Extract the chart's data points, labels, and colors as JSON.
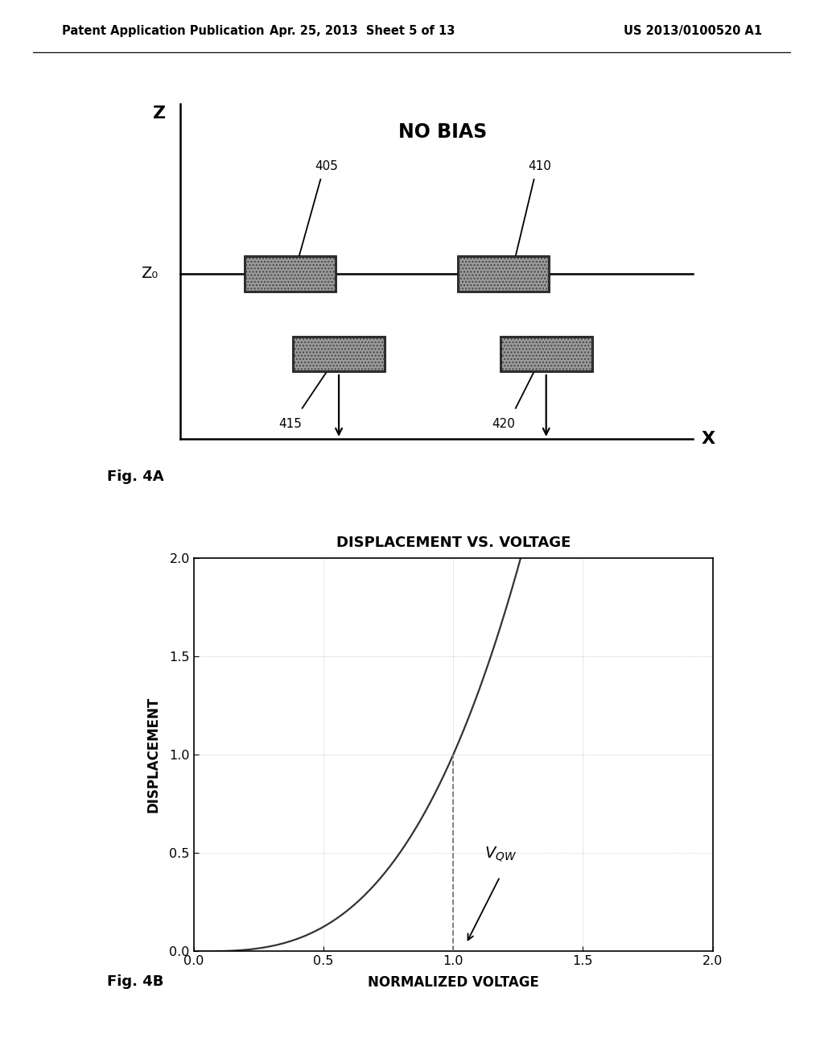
{
  "header_left": "Patent Application Publication",
  "header_mid": "Apr. 25, 2013  Sheet 5 of 13",
  "header_right": "US 2013/0100520 A1",
  "fig4a_label": "Fig. 4A",
  "fig4b_label": "Fig. 4B",
  "no_bias_text": "NO BIAS",
  "z_label": "Z",
  "z0_label": "Z₀",
  "x_label": "X",
  "ribbon_labels": [
    "405",
    "410",
    "415",
    "420"
  ],
  "plot_title": "DISPLACEMENT VS. VOLTAGE",
  "plot_xlabel": "NORMALIZED VOLTAGE",
  "plot_ylabel": "DISPLACEMENT",
  "xlim": [
    0.0,
    2.0
  ],
  "ylim": [
    0.0,
    2.0
  ],
  "xticks": [
    0.0,
    0.5,
    1.0,
    1.5,
    2.0
  ],
  "yticks": [
    0.0,
    0.5,
    1.0,
    1.5,
    2.0
  ],
  "vqw_x": 1.0,
  "bg_color": "#ffffff",
  "line_color": "#333333",
  "box_fill": "#999999",
  "box_edge": "#111111",
  "dashed_color": "#777777"
}
